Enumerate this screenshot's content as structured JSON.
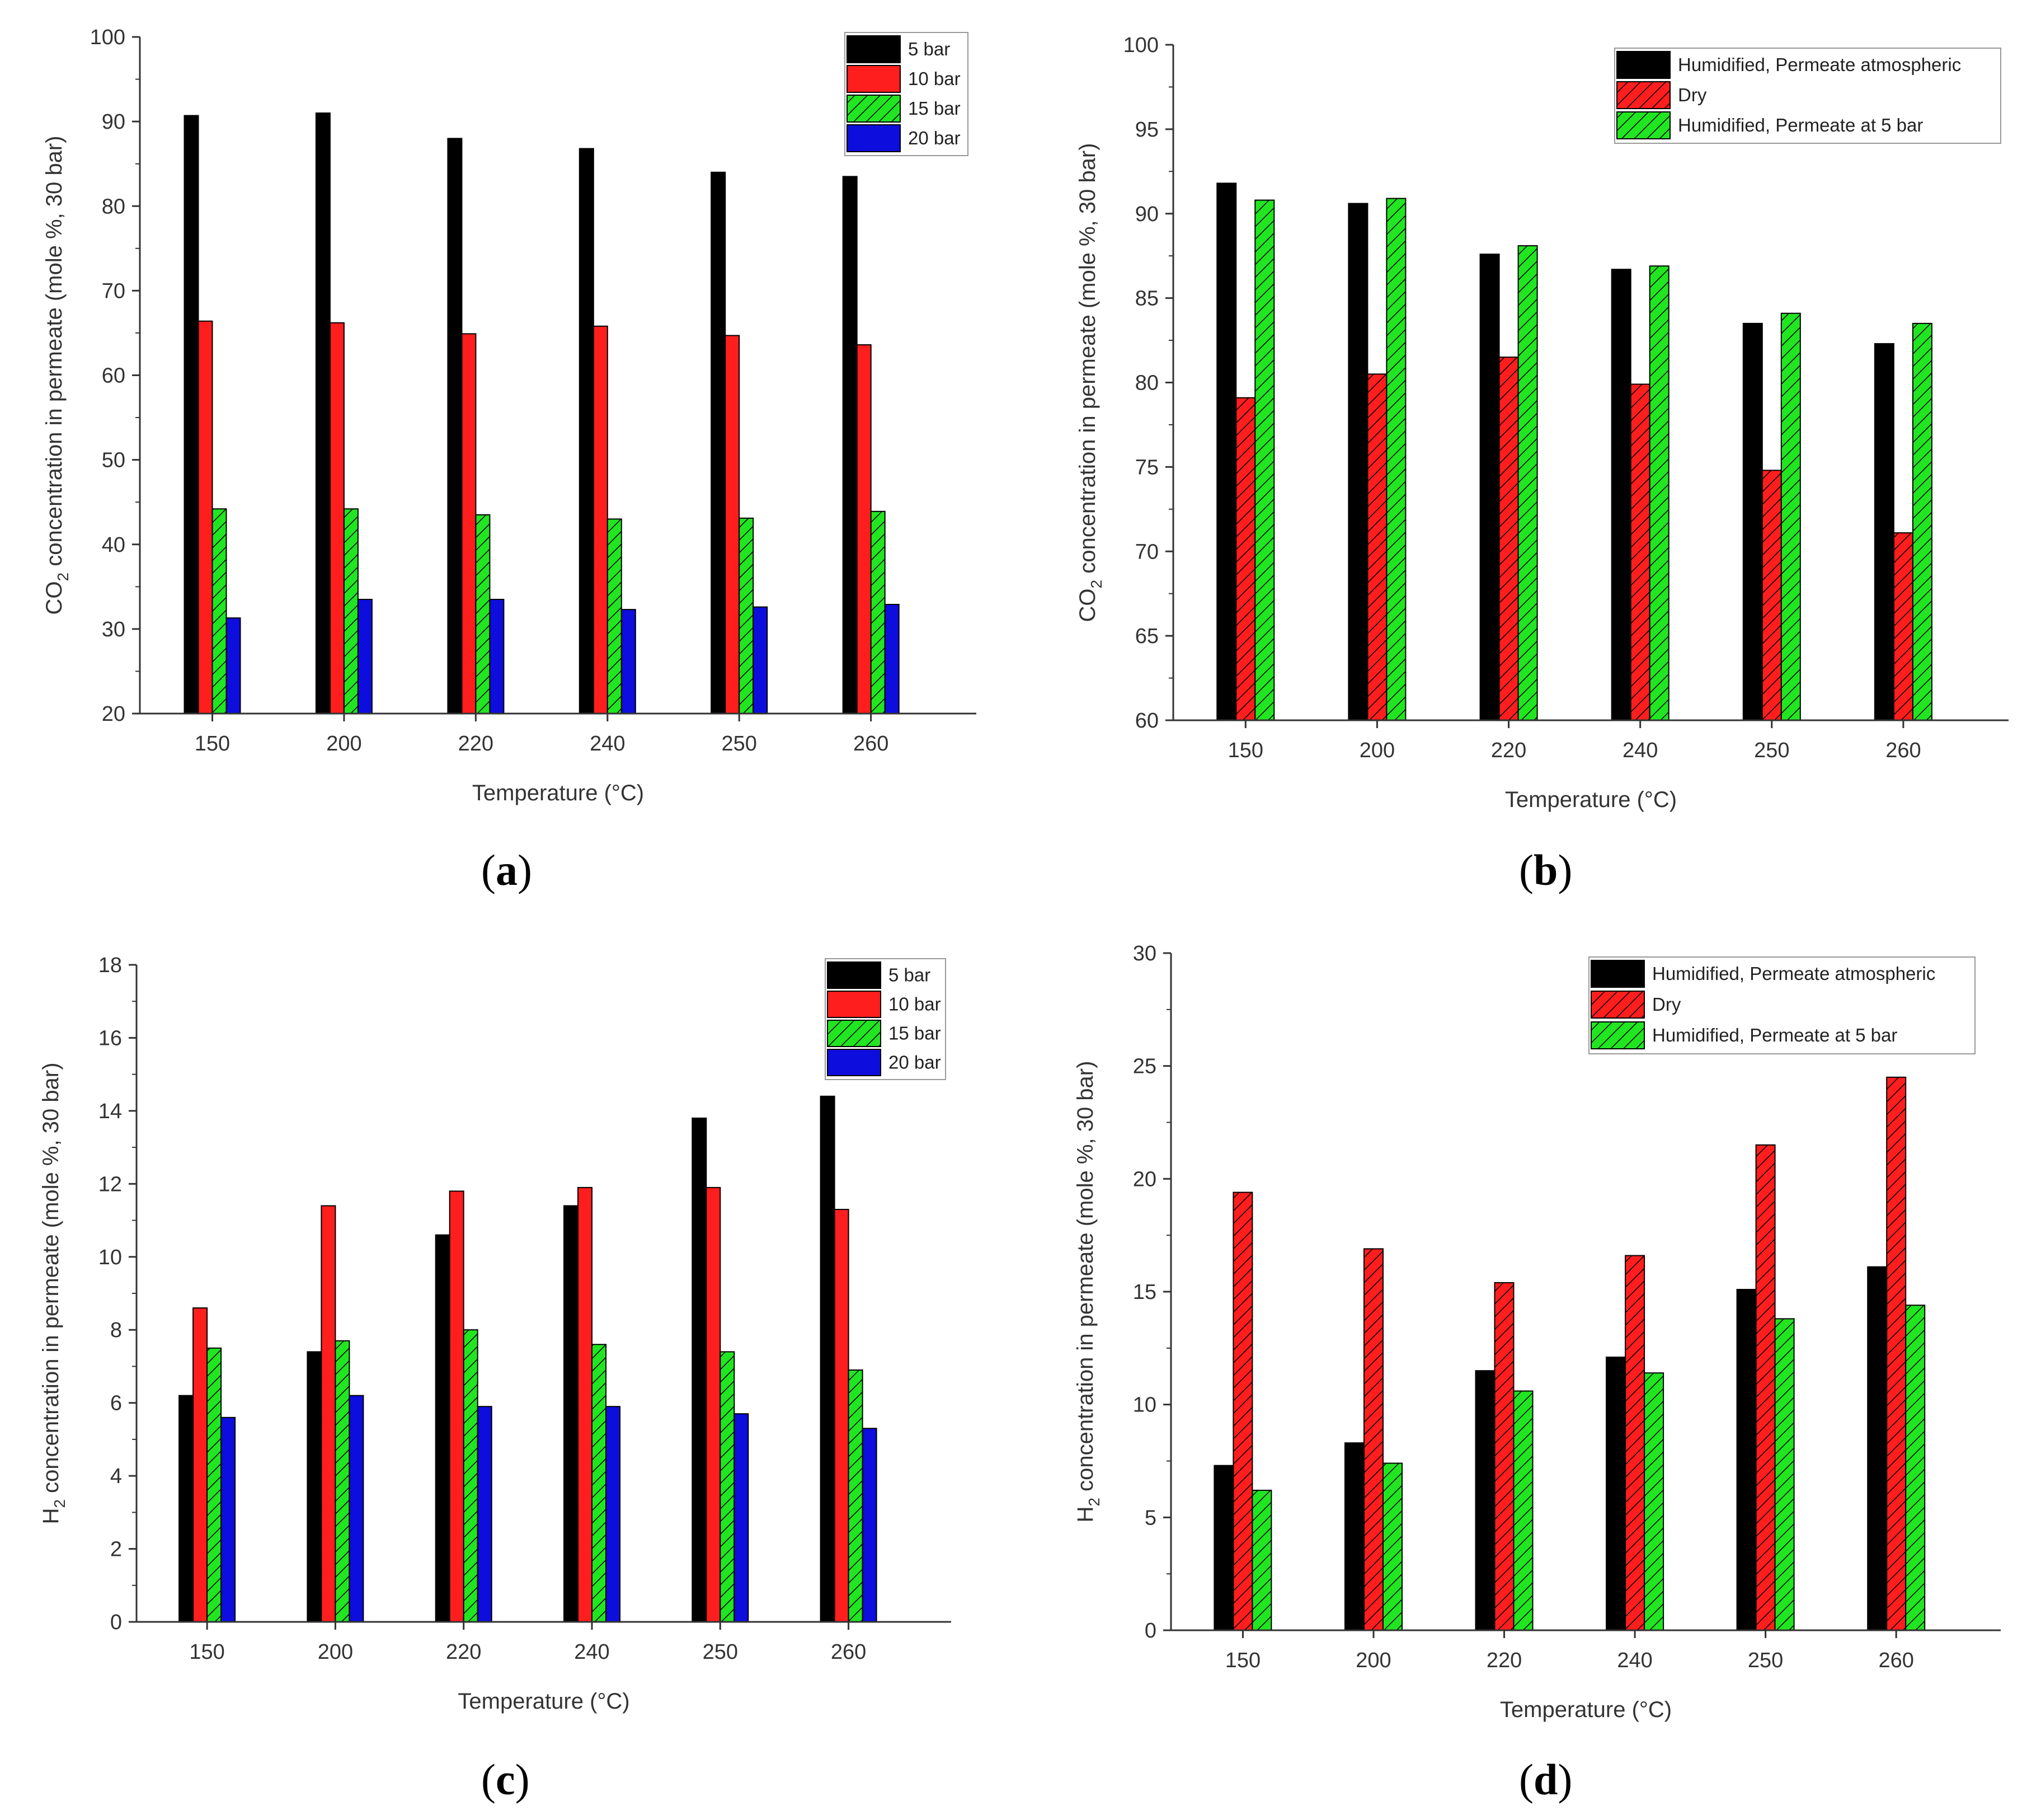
{
  "colors": {
    "black": "#000000",
    "red": "#ff1e1e",
    "green": "#22e522",
    "blue": "#0d0ddd",
    "axis": "#333333",
    "background": "#ffffff"
  },
  "chart_data": [
    {
      "id": "a",
      "panel_label": "a",
      "type": "bar",
      "title": "",
      "xlabel": "Temperature (°C)",
      "ylabel": "CO2 concentration in permeate (mole %, 30 bar)",
      "ylabel_parts": [
        "CO",
        "2",
        " concentration in permeate (mole %, 30 bar)"
      ],
      "ylim": [
        20,
        100
      ],
      "yticks": [
        20,
        30,
        40,
        50,
        60,
        70,
        80,
        90,
        100
      ],
      "legend_position": "top-right",
      "categories": [
        "150",
        "200",
        "220",
        "240",
        "250",
        "260"
      ],
      "series": [
        {
          "name": "5 bar",
          "color": "#000000",
          "pattern": "solid",
          "values": [
            90.7,
            91.0,
            88.0,
            86.8,
            84.0,
            83.5
          ]
        },
        {
          "name": "10 bar",
          "color": "#ff1e1e",
          "pattern": "solid",
          "values": [
            66.4,
            66.2,
            64.9,
            65.8,
            64.7,
            63.6
          ]
        },
        {
          "name": "15 bar",
          "color": "#22e522",
          "pattern": "hatch",
          "values": [
            44.2,
            44.2,
            43.5,
            43.0,
            43.1,
            43.9
          ]
        },
        {
          "name": "20 bar",
          "color": "#0d0ddd",
          "pattern": "solid",
          "values": [
            31.3,
            33.5,
            33.5,
            32.3,
            32.6,
            32.9
          ]
        }
      ]
    },
    {
      "id": "b",
      "panel_label": "b",
      "type": "bar",
      "title": "",
      "xlabel": "Temperature (°C)",
      "ylabel": "CO2 concentration in permeate (mole %, 30 bar)",
      "ylabel_parts": [
        "CO",
        "2",
        " concentration in permeate (mole %, 30 bar)"
      ],
      "ylim": [
        60,
        100
      ],
      "yticks": [
        60,
        65,
        70,
        75,
        80,
        85,
        90,
        95,
        100
      ],
      "legend_position": "top-right",
      "categories": [
        "150",
        "200",
        "220",
        "240",
        "250",
        "260"
      ],
      "series": [
        {
          "name": "Humidified, Permeate atmospheric",
          "color": "#000000",
          "pattern": "solid",
          "values": [
            91.8,
            90.6,
            87.6,
            86.7,
            83.5,
            82.3
          ]
        },
        {
          "name": "Dry",
          "color": "#ff1e1e",
          "pattern": "hatch",
          "values": [
            79.1,
            80.5,
            81.5,
            79.9,
            74.8,
            71.1
          ]
        },
        {
          "name": "Humidified, Permeate at 5 bar",
          "color": "#22e522",
          "pattern": "hatch",
          "values": [
            90.8,
            90.9,
            88.1,
            86.9,
            84.1,
            83.5
          ]
        }
      ]
    },
    {
      "id": "c",
      "panel_label": "c",
      "type": "bar",
      "title": "",
      "xlabel": "Temperature (°C)",
      "ylabel": "H2 concentration in permeate (mole %, 30 bar)",
      "ylabel_parts": [
        "H",
        "2",
        " concentration in permeate (mole %, 30 bar)"
      ],
      "ylim": [
        0,
        18
      ],
      "yticks": [
        0,
        2,
        4,
        6,
        8,
        10,
        12,
        14,
        16,
        18
      ],
      "legend_position": "top-right",
      "categories": [
        "150",
        "200",
        "220",
        "240",
        "250",
        "260"
      ],
      "series": [
        {
          "name": "5 bar",
          "color": "#000000",
          "pattern": "solid",
          "values": [
            6.2,
            7.4,
            10.6,
            11.4,
            13.8,
            14.4
          ]
        },
        {
          "name": "10 bar",
          "color": "#ff1e1e",
          "pattern": "solid",
          "values": [
            8.6,
            11.4,
            11.8,
            11.9,
            11.9,
            11.3
          ]
        },
        {
          "name": "15 bar",
          "color": "#22e522",
          "pattern": "hatch",
          "values": [
            7.5,
            7.7,
            8.0,
            7.6,
            7.4,
            6.9
          ]
        },
        {
          "name": "20 bar",
          "color": "#0d0ddd",
          "pattern": "solid",
          "values": [
            5.6,
            6.2,
            5.9,
            5.9,
            5.7,
            5.3
          ]
        }
      ]
    },
    {
      "id": "d",
      "panel_label": "d",
      "type": "bar",
      "title": "",
      "xlabel": "Temperature (°C)",
      "ylabel": "H2 concentration in permeate (mole %, 30 bar)",
      "ylabel_parts": [
        "H",
        "2",
        " concentration in permeate (mole %, 30 bar)"
      ],
      "ylim": [
        0,
        30
      ],
      "yticks": [
        0,
        5,
        10,
        15,
        20,
        25,
        30
      ],
      "legend_position": "top-right",
      "categories": [
        "150",
        "200",
        "220",
        "240",
        "250",
        "260"
      ],
      "series": [
        {
          "name": "Humidified, Permeate atmospheric",
          "color": "#000000",
          "pattern": "solid",
          "values": [
            7.3,
            8.3,
            11.5,
            12.1,
            15.1,
            16.1
          ]
        },
        {
          "name": "Dry",
          "color": "#ff1e1e",
          "pattern": "hatch",
          "values": [
            19.4,
            16.9,
            15.4,
            16.6,
            21.5,
            24.5
          ]
        },
        {
          "name": "Humidified, Permeate at 5 bar",
          "color": "#22e522",
          "pattern": "hatch",
          "values": [
            6.2,
            7.4,
            10.6,
            11.4,
            13.8,
            14.4
          ]
        }
      ]
    }
  ]
}
